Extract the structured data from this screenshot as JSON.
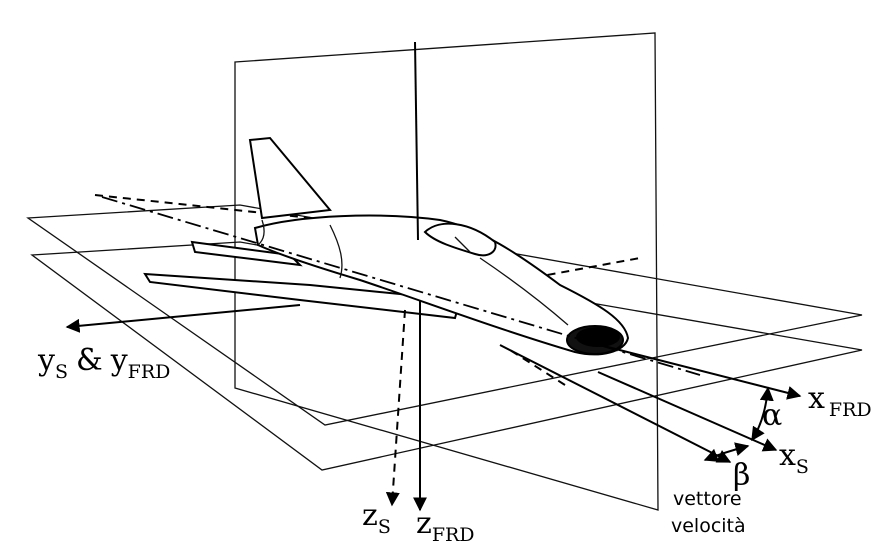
{
  "axes": {
    "y": {
      "main": "y",
      "sub_s": "S",
      "amp": "&",
      "sub_frd": "FRD"
    },
    "x_frd": {
      "main": "x",
      "sub": "FRD"
    },
    "x_s": {
      "main": "x",
      "sub": "S"
    },
    "z_s": {
      "main": "z",
      "sub": "S"
    },
    "z_frd": {
      "main": "z",
      "sub": "FRD"
    }
  },
  "angles": {
    "alpha": "α",
    "beta": "β"
  },
  "velocity": {
    "line1": "vettore",
    "line2": "velocità"
  }
}
